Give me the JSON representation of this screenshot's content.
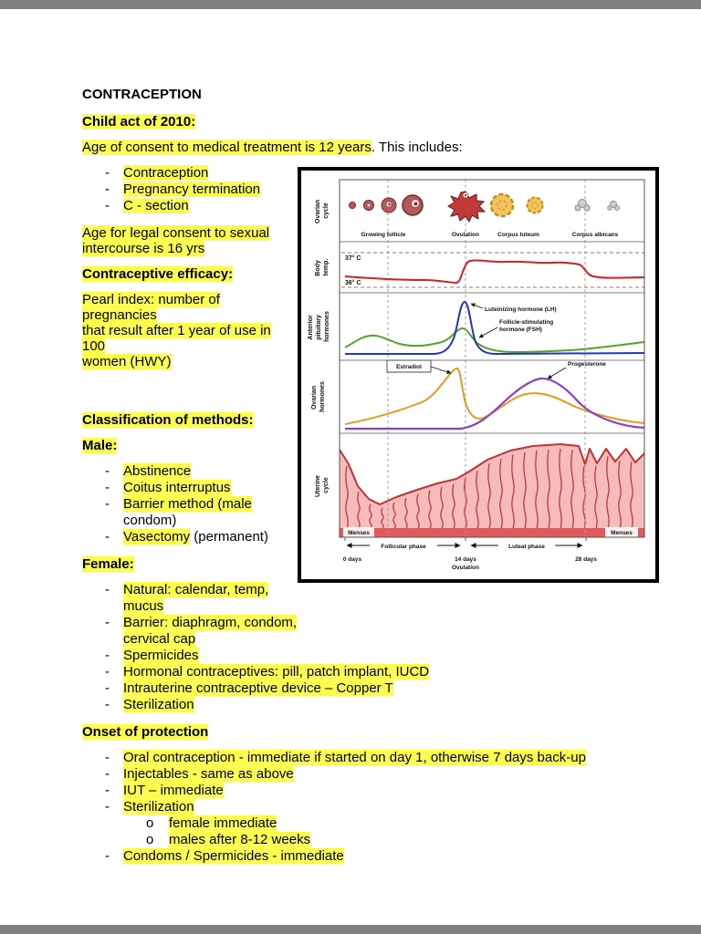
{
  "colors": {
    "highlight": "#fcfc4e",
    "chrome_bg": "#7f7f7f",
    "page_bg": "#ffffff",
    "text": "#000000"
  },
  "document": {
    "bullet_char": "-",
    "sub_bullet_char": "o",
    "blocks": [
      {
        "type": "p",
        "h1": true,
        "runs": [
          {
            "t": "CONTRACEPTION",
            "b": true
          }
        ]
      },
      {
        "type": "p",
        "runs": [
          {
            "t": "Child act of 2010:",
            "b": true,
            "hl": true
          }
        ]
      },
      {
        "type": "p",
        "runs": [
          {
            "t": "Age of consent to medical treatment is 12 years",
            "hl": true
          },
          {
            "t": ". This includes:"
          }
        ]
      },
      {
        "type": "figure"
      },
      {
        "type": "list",
        "items": [
          {
            "runs": [
              {
                "t": "Contraception",
                "hl": true
              }
            ]
          },
          {
            "runs": [
              {
                "t": "Pregnancy termination",
                "hl": true
              }
            ]
          },
          {
            "runs": [
              {
                "t": "C - section",
                "hl": true
              }
            ]
          }
        ]
      },
      {
        "type": "p",
        "runs": [
          {
            "t": "Age for legal consent to sexual\nintercourse is 16 yrs",
            "hl": true
          }
        ]
      },
      {
        "type": "p",
        "runs": [
          {
            "t": "Contraceptive efficacy:",
            "b": true,
            "hl": true
          }
        ]
      },
      {
        "type": "p",
        "runs": [
          {
            "t": "Pearl index: number of pregnancies\nthat result after 1 year of use in 100\nwomen (HWY)",
            "hl": true
          }
        ]
      },
      {
        "type": "spacer",
        "h": 36
      },
      {
        "type": "p",
        "runs": [
          {
            "t": "Classification of methods:",
            "b": true,
            "hl": true
          }
        ]
      },
      {
        "type": "p",
        "runs": [
          {
            "t": "Male:",
            "b": true,
            "hl": true
          }
        ]
      },
      {
        "type": "list",
        "items": [
          {
            "runs": [
              {
                "t": "Abstinence",
                "hl": true
              }
            ]
          },
          {
            "runs": [
              {
                "t": "Coitus interruptus",
                "hl": true
              }
            ]
          },
          {
            "runs": [
              {
                "t": "Barrier method (male",
                "hl": true
              },
              {
                "t": "\ncondom)"
              }
            ]
          },
          {
            "runs": [
              {
                "t": "Vasectomy",
                "hl": true
              },
              {
                "t": " (permanent)"
              }
            ]
          }
        ]
      },
      {
        "type": "p",
        "runs": [
          {
            "t": "Female:",
            "b": true,
            "hl": true
          }
        ]
      },
      {
        "type": "list",
        "items": [
          {
            "runs": [
              {
                "t": "Natural: calendar, temp,\nmucus",
                "hl": true
              }
            ]
          },
          {
            "runs": [
              {
                "t": "Barrier: diaphragm, condom,\ncervical cap",
                "hl": true
              }
            ]
          },
          {
            "runs": [
              {
                "t": "Spermicides",
                "hl": true
              }
            ]
          },
          {
            "runs": [
              {
                "t": "Hormonal contraceptives: pill, patch implant, IUCD",
                "hl": true
              }
            ]
          },
          {
            "runs": [
              {
                "t": "Intrauterine contraceptive device – Copper T",
                "hl": true
              }
            ]
          },
          {
            "runs": [
              {
                "t": "Sterilization",
                "hl": true
              }
            ]
          }
        ]
      },
      {
        "type": "p",
        "runs": [
          {
            "t": "Onset of protection",
            "b": true,
            "hl": true
          }
        ]
      },
      {
        "type": "list",
        "items": [
          {
            "runs": [
              {
                "t": "Oral contraception - immediate if started on day 1, otherwise 7 days back-up",
                "hl": true
              }
            ]
          },
          {
            "runs": [
              {
                "t": "Injectables - same as above",
                "hl": true
              }
            ]
          },
          {
            "runs": [
              {
                "t": "IUT – immediate",
                "hl": true
              }
            ]
          },
          {
            "runs": [
              {
                "t": "Sterilization",
                "hl": true
              }
            ],
            "sub": [
              {
                "runs": [
                  {
                    "t": "female immediate",
                    "hl": true
                  }
                ]
              },
              {
                "runs": [
                  {
                    "t": "males after 8-12 weeks",
                    "hl": true
                  }
                ]
              }
            ]
          },
          {
            "runs": [
              {
                "t": "Condoms / Spermicides - immediate",
                "hl": true
              }
            ]
          }
        ]
      }
    ]
  },
  "figure": {
    "frame_color": "#000000",
    "side_labels": {
      "ovarian_cycle": [
        "Ovarian",
        "cycle"
      ],
      "body_temp": [
        "Body",
        "temp."
      ],
      "anterior_pituitary": [
        "Anterior",
        "pituitary",
        "hormones"
      ],
      "ovarian_hormones": [
        "Ovarian",
        "hormones"
      ],
      "uterine_cycle": [
        "Uterine",
        "cycle"
      ]
    },
    "ovarian_cycle_labels": [
      "Growing follicle",
      "Ovulation",
      "Corpus luteum",
      "Corpus albicans"
    ],
    "panel2": {
      "temp_high": "37° C",
      "temp_low": "36° C",
      "line_color": "#d81e1e"
    },
    "panel3": {
      "lh_label": "Luteinizing hormone (LH)",
      "fsh_label_lines": [
        "Follicle-stimulating",
        "hormone (FSH)"
      ],
      "lh_color": "#2433c8",
      "fsh_color": "#58a32d"
    },
    "panel4": {
      "estradiol_label": "Estradiol",
      "progesterone_label": "Progesterone",
      "estradiol_color": "#e39b1c",
      "progesterone_color": "#8a3fd1"
    },
    "uterine": {
      "menses_left": "Menses",
      "menses_right": "Menses",
      "fill": "#f6bcbc",
      "gland_color": "#c43838",
      "base_color": "#e2595c"
    },
    "axis": {
      "follicular": "Follicular phase",
      "luteal": "Luteal phase",
      "day0": "0 days",
      "day14": "14 days",
      "ovulation": "Ovulation",
      "day28": "28 days"
    }
  }
}
